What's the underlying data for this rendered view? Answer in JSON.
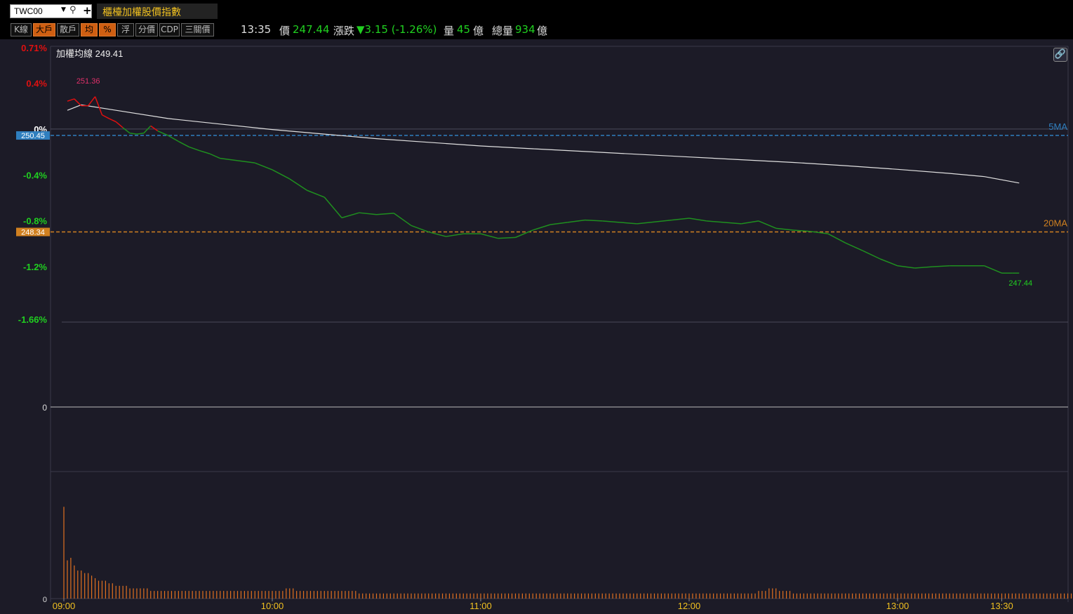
{
  "header": {
    "symbol": "TWC00",
    "instrument_name": "櫃檯加權股價指數"
  },
  "toolbar": {
    "buttons": [
      {
        "label": "K線",
        "active": false
      },
      {
        "label": "大戶",
        "active": true
      },
      {
        "label": "散戶",
        "active": false
      },
      {
        "label": "均",
        "active": true
      },
      {
        "label": "%",
        "active": true
      },
      {
        "label": "浮",
        "active": false
      },
      {
        "label": "分價",
        "active": false
      },
      {
        "label": "CDP",
        "active": false
      },
      {
        "label": "三關價",
        "active": false
      }
    ],
    "time": "13:35",
    "price_label": "價",
    "price": "247.44",
    "change_label": "漲跌",
    "change": "▼3.15 (-1.26%)",
    "volume_label": "量",
    "volume": "45",
    "volume_unit": "億",
    "total_volume_label": "總量",
    "total_volume": "934",
    "total_volume_unit": "億"
  },
  "colors": {
    "up": "#e01010",
    "down": "#20d020",
    "price_line_down": "#1f8f1f",
    "avg_line": "#e0e0e0",
    "ma5": "#2f7fbf",
    "ma20": "#d08020",
    "volume_bar": "#e07020",
    "background": "#1c1b27"
  },
  "chart_data": {
    "type": "line",
    "title": "加權均線 249.41",
    "x_ticks": [
      "09:00",
      "10:00",
      "11:00",
      "12:00",
      "13:00",
      "13:30"
    ],
    "y_pct_ticks": [
      "0.71%",
      "0.4%",
      "0%",
      "-0.4%",
      "-0.8%",
      "-1.2%",
      "-1.66%"
    ],
    "reference_price": 250.59,
    "high_label": "251.36",
    "last_label": "247.44",
    "ma_lines": [
      {
        "name": "5MA",
        "value": 250.45,
        "label": "250.45"
      },
      {
        "name": "20MA",
        "value": 248.34,
        "label": "248.34"
      }
    ],
    "series": [
      {
        "name": "price",
        "x": [
          "09:01",
          "09:03",
          "09:05",
          "09:07",
          "09:09",
          "09:11",
          "09:13",
          "09:15",
          "09:17",
          "09:19",
          "09:21",
          "09:23",
          "09:25",
          "09:27",
          "09:30",
          "09:33",
          "09:36",
          "09:39",
          "09:42",
          "09:45",
          "09:50",
          "09:55",
          "10:00",
          "10:05",
          "10:10",
          "10:15",
          "10:20",
          "10:25",
          "10:30",
          "10:35",
          "10:40",
          "10:45",
          "10:50",
          "10:55",
          "11:00",
          "11:05",
          "11:10",
          "11:15",
          "11:20",
          "11:25",
          "11:30",
          "11:35",
          "11:40",
          "11:45",
          "11:50",
          "11:55",
          "12:00",
          "12:05",
          "12:10",
          "12:15",
          "12:20",
          "12:25",
          "12:30",
          "12:35",
          "12:40",
          "12:45",
          "12:50",
          "12:55",
          "13:00",
          "13:05",
          "13:10",
          "13:15",
          "13:20",
          "13:25",
          "13:30",
          "13:33",
          "13:35"
        ],
        "values": [
          251.2,
          251.25,
          251.1,
          251.1,
          251.3,
          250.9,
          250.82,
          250.75,
          250.62,
          250.5,
          250.48,
          250.5,
          250.66,
          250.55,
          250.45,
          250.32,
          250.2,
          250.12,
          250.05,
          249.95,
          249.9,
          249.85,
          249.7,
          249.5,
          249.25,
          249.1,
          248.65,
          248.76,
          248.72,
          248.75,
          248.48,
          248.34,
          248.24,
          248.3,
          248.3,
          248.2,
          248.22,
          248.38,
          248.5,
          248.55,
          248.6,
          248.58,
          248.55,
          248.52,
          248.56,
          248.6,
          248.64,
          248.58,
          248.55,
          248.52,
          248.58,
          248.42,
          248.38,
          248.35,
          248.3,
          248.1,
          247.93,
          247.75,
          247.6,
          247.55,
          247.58,
          247.6,
          247.6,
          247.6,
          247.44,
          247.44,
          247.44
        ]
      },
      {
        "name": "avg",
        "x": [
          "09:01",
          "09:05",
          "09:15",
          "09:30",
          "09:45",
          "10:00",
          "10:15",
          "10:30",
          "10:45",
          "11:00",
          "11:15",
          "11:30",
          "11:45",
          "12:00",
          "12:15",
          "12:30",
          "12:45",
          "13:00",
          "13:15",
          "13:25",
          "13:35"
        ],
        "values": [
          251.0,
          251.12,
          251.0,
          250.82,
          250.7,
          250.58,
          250.48,
          250.38,
          250.3,
          250.22,
          250.16,
          250.1,
          250.04,
          249.98,
          249.92,
          249.86,
          249.79,
          249.71,
          249.62,
          249.55,
          249.41
        ]
      }
    ],
    "volume": {
      "ymin_label": "0",
      "values": [
        36,
        15,
        16,
        13,
        11,
        11,
        10,
        10,
        9,
        8,
        7,
        7,
        7,
        6,
        6,
        5,
        5,
        5,
        5,
        4,
        4,
        4,
        4,
        4,
        4,
        3,
        3,
        3,
        3,
        3,
        3,
        3,
        3,
        3,
        3,
        3,
        3,
        3,
        3,
        3,
        3,
        3,
        3,
        3,
        3,
        3,
        3,
        3,
        3,
        3,
        3,
        3,
        3,
        3,
        3,
        3,
        3,
        3,
        3,
        3,
        3,
        3,
        3,
        3,
        4,
        4,
        4,
        3,
        3,
        3,
        3,
        3,
        3,
        3,
        3,
        3,
        3,
        3,
        3,
        3,
        3,
        3,
        3,
        3,
        3,
        2,
        2,
        2,
        2,
        2,
        2,
        2,
        2,
        2,
        2,
        2,
        2,
        2,
        2,
        2,
        2,
        2,
        2,
        2,
        2,
        2,
        2,
        2,
        2,
        2,
        2,
        2,
        2,
        2,
        2,
        2,
        2,
        2,
        2,
        2,
        2,
        2,
        2,
        2,
        2,
        2,
        2,
        2,
        2,
        2,
        2,
        2,
        2,
        2,
        2,
        2,
        2,
        2,
        2,
        2,
        2,
        2,
        2,
        2,
        2,
        2,
        2,
        2,
        2,
        2,
        2,
        2,
        2,
        2,
        2,
        2,
        2,
        2,
        2,
        2,
        2,
        2,
        2,
        2,
        2,
        2,
        2,
        2,
        2,
        2,
        2,
        2,
        2,
        2,
        2,
        2,
        2,
        2,
        2,
        2,
        2,
        2,
        2,
        2,
        2,
        2,
        2,
        2,
        2,
        2,
        2,
        2,
        2,
        2,
        2,
        2,
        2,
        2,
        2,
        2,
        3,
        3,
        3,
        4,
        4,
        4,
        3,
        3,
        3,
        3,
        2,
        2,
        2,
        2,
        2,
        2,
        2,
        2,
        2,
        2,
        2,
        2,
        2,
        2,
        2,
        2,
        2,
        2,
        2,
        2,
        2,
        2,
        2,
        2,
        2,
        2,
        2,
        2,
        2,
        2,
        2,
        2,
        2,
        2,
        2,
        2,
        2,
        2,
        2,
        2,
        2,
        2,
        2,
        2,
        2,
        2,
        2,
        2,
        2,
        2,
        2,
        2,
        2,
        2,
        2,
        2,
        2,
        2,
        2,
        2,
        2,
        2,
        2,
        2,
        2,
        2,
        2,
        2,
        2,
        2,
        2,
        2,
        2,
        2,
        2,
        2,
        2,
        2,
        2,
        2,
        2,
        2,
        2,
        2,
        2,
        2,
        2,
        2,
        2,
        2,
        2,
        2,
        2,
        2,
        2,
        2,
        2,
        2,
        2,
        2,
        2,
        2,
        2,
        2,
        2,
        2,
        2,
        2,
        2,
        3,
        3,
        3,
        3,
        3,
        3,
        3,
        3,
        3,
        3,
        3,
        3,
        3,
        3,
        3,
        3,
        3,
        3,
        3,
        3,
        3,
        3,
        3,
        3,
        3,
        3,
        3,
        3,
        3,
        3,
        3,
        3,
        3,
        3,
        3,
        3,
        3,
        3,
        3,
        3,
        3,
        3,
        3,
        3,
        3,
        3,
        3,
        3,
        3,
        3,
        3,
        3,
        3,
        3,
        3,
        3,
        3,
        3,
        3,
        3,
        3,
        3,
        3,
        3,
        4,
        4,
        4,
        4,
        4,
        4,
        5,
        5,
        5,
        6,
        6,
        7,
        7,
        8,
        8,
        0,
        0,
        0,
        0,
        0,
        0,
        0,
        0,
        0,
        0,
        0,
        0,
        0,
        0,
        0,
        0,
        0,
        0,
        0,
        0,
        0,
        0,
        0,
        0,
        0,
        0,
        0,
        0,
        0,
        0,
        0,
        0,
        0,
        0,
        0,
        0,
        0,
        0,
        0,
        0,
        0,
        0,
        0,
        0,
        0,
        0,
        0,
        0,
        0,
        0,
        0,
        0,
        0,
        0,
        0,
        46
      ]
    }
  }
}
